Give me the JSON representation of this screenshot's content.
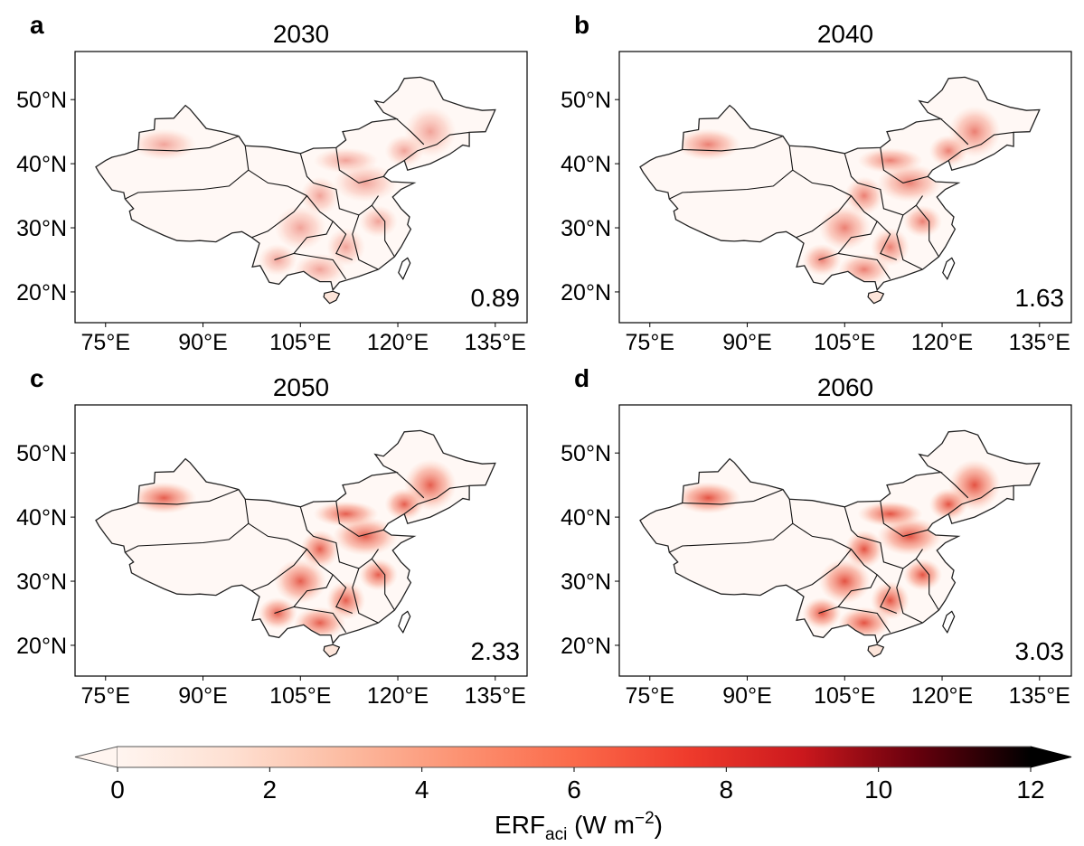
{
  "panels": [
    {
      "letter": "a",
      "title": "2030",
      "value": 0.89
    },
    {
      "letter": "b",
      "title": "2040",
      "value": 1.63
    },
    {
      "letter": "c",
      "title": "2050",
      "value": 2.33
    },
    {
      "letter": "d",
      "title": "2060",
      "value": 3.03
    }
  ],
  "axes": {
    "xlim": [
      70.3,
      139.9
    ],
    "ylim": [
      15.2,
      57.5
    ],
    "xticks": [
      {
        "value": 75,
        "label": "75°E"
      },
      {
        "value": 90,
        "label": "90°E"
      },
      {
        "value": 105,
        "label": "105°E"
      },
      {
        "value": 120,
        "label": "120°E"
      },
      {
        "value": 135,
        "label": "135°E"
      }
    ],
    "yticks": [
      {
        "value": 20,
        "label": "20°N"
      },
      {
        "value": 30,
        "label": "30°N"
      },
      {
        "value": 40,
        "label": "40°N"
      },
      {
        "value": 50,
        "label": "50°N"
      }
    ]
  },
  "colorbar": {
    "lim": [
      0,
      12
    ],
    "ticks": [
      0,
      2,
      4,
      6,
      8,
      10,
      12
    ],
    "label": {
      "main": "ERF",
      "sub": "aci",
      "unit": " (W m",
      "sup": "−2",
      "close": ")"
    }
  }
}
